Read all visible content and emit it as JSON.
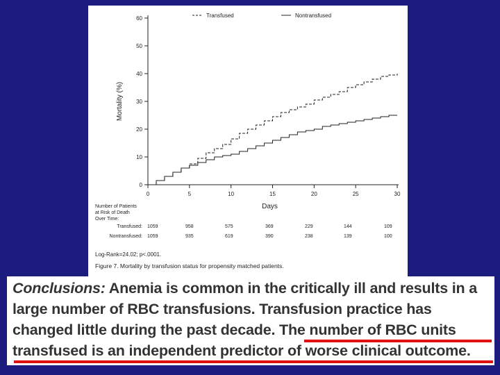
{
  "chart_data": {
    "type": "line",
    "ylabel": "Mortality (%)",
    "xlabel": "Days",
    "xlim": [
      0,
      30
    ],
    "ylim": [
      0,
      60
    ],
    "xticks": [
      "0",
      "5",
      "10",
      "15",
      "20",
      "25",
      "30"
    ],
    "yticks": [
      "0",
      "10",
      "20",
      "30",
      "40",
      "50",
      "60"
    ],
    "legend_position": "top",
    "series": [
      {
        "name": "Transfused",
        "style": "dashed",
        "x": [
          0,
          1,
          2,
          3,
          4,
          5,
          6,
          7,
          8,
          9,
          10,
          11,
          12,
          13,
          14,
          15,
          16,
          17,
          18,
          19,
          20,
          21,
          22,
          23,
          24,
          25,
          26,
          27,
          28,
          29,
          30
        ],
        "y": [
          0,
          1.5,
          3,
          4.5,
          6,
          7.5,
          9.5,
          11.5,
          13,
          14.5,
          16.5,
          18.5,
          20,
          21.5,
          23,
          24.5,
          26,
          27,
          28,
          29,
          30.5,
          31.5,
          32.5,
          33.5,
          35,
          36,
          37,
          38,
          39,
          39.5,
          40
        ]
      },
      {
        "name": "Nontransfused",
        "style": "solid",
        "x": [
          0,
          1,
          2,
          3,
          4,
          5,
          6,
          7,
          8,
          9,
          10,
          11,
          12,
          13,
          14,
          15,
          16,
          17,
          18,
          19,
          20,
          21,
          22,
          23,
          24,
          25,
          26,
          27,
          28,
          29,
          30
        ],
        "y": [
          0,
          1.5,
          3,
          4.5,
          6,
          7,
          8,
          9,
          10,
          10.5,
          11,
          12,
          13,
          14,
          15,
          16,
          17,
          18,
          19,
          19.5,
          20,
          21,
          21.5,
          22,
          22.5,
          23,
          23.5,
          24,
          24.5,
          25,
          25
        ]
      }
    ]
  },
  "risk_table": {
    "title": "Number of Patients\nat Risk of Death\nOver Time:",
    "rows": [
      {
        "label": "Transfused:",
        "values": [
          "1059",
          "958",
          "575",
          "369",
          "229",
          "144",
          "109"
        ]
      },
      {
        "label": "Nontransfused:",
        "values": [
          "1059",
          "935",
          "619",
          "390",
          "238",
          "139",
          "100"
        ]
      }
    ]
  },
  "stats_note": "Log-Rank=24.02; p<.0001.",
  "figure_caption": "Figure 7. Mortality by transfusion status for propensity matched patients.",
  "conclusions": {
    "lead": "Conclusions:",
    "body": " Anemia is common in the critically ill and results in a large number of RBC transfusions. Transfusion practice has changed little during the past decade. The number of RBC units transfused is an independent predictor of worse clinical outcome."
  },
  "colors": {
    "background": "#1c1c7e",
    "highlight_underline": "#e01010",
    "text": "#333333"
  }
}
